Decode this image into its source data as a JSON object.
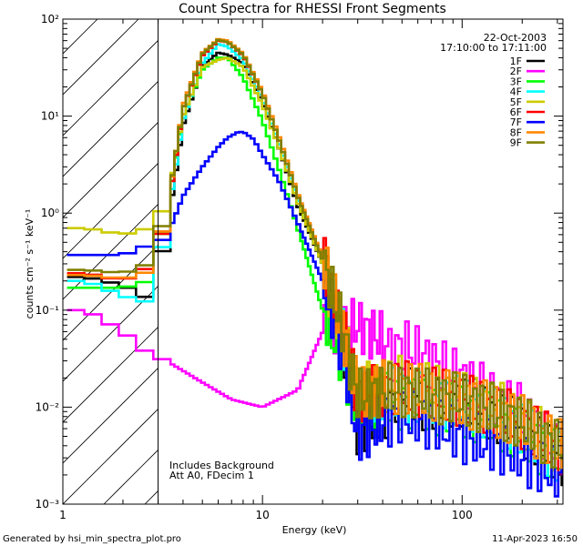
{
  "chart_data": {
    "type": "line",
    "title": "Count Spectra for RHESSI Front Segments",
    "xlabel": "Energy (keV)",
    "ylabel": "counts cm⁻² s⁻¹ keV⁻¹",
    "xscale": "log",
    "yscale": "log",
    "xlim": [
      1,
      320
    ],
    "ylim": [
      0.001,
      100
    ],
    "x_tick_labels": [
      "1",
      "10",
      "100"
    ],
    "y_tick_labels": [
      "10⁻³",
      "10⁻²",
      "10⁻¹",
      "10⁰",
      "10¹",
      "10²"
    ],
    "date_label": "22-Oct-2003",
    "time_range_label": "17:10:00 to 17:11:00",
    "hatched_region_keV": [
      1,
      3
    ],
    "note_lines": [
      "Includes Background",
      "Att A0, FDecim 1"
    ],
    "series": [
      {
        "name": "1F",
        "color": "#000000",
        "x": [
          1.3,
          2,
          2.7,
          3.3,
          4,
          5,
          6,
          6.7,
          8,
          10,
          12,
          15,
          20,
          25,
          30,
          40,
          50,
          70,
          100,
          150,
          200,
          300
        ],
        "y": [
          0.22,
          0.18,
          0.13,
          0.6,
          8,
          33,
          45,
          43,
          35,
          14,
          5,
          1.2,
          0.3,
          0.05,
          0.006,
          0.008,
          0.015,
          0.01,
          0.012,
          0.008,
          0.006,
          0.003
        ]
      },
      {
        "name": "2F",
        "color": "#ff00ff",
        "x": [
          1.3,
          2,
          2.7,
          3.3,
          5,
          7,
          10,
          15,
          20,
          30,
          40,
          45,
          50,
          70,
          100,
          150,
          200,
          300
        ],
        "y": [
          0.1,
          0.06,
          0.035,
          0.03,
          0.018,
          0.012,
          0.01,
          0.015,
          0.06,
          0.07,
          0.05,
          0.035,
          0.045,
          0.03,
          0.02,
          0.012,
          0.009,
          0.0035
        ]
      },
      {
        "name": "3F",
        "color": "#00ff00",
        "x": [
          1.3,
          2,
          2.7,
          3.3,
          4,
          5,
          6,
          6.7,
          8,
          10,
          12,
          15,
          20,
          25,
          30,
          40,
          50,
          70,
          100,
          150,
          200,
          300
        ],
        "y": [
          0.17,
          0.17,
          0.2,
          0.9,
          10,
          30,
          40,
          40,
          25,
          9,
          3,
          0.7,
          0.1,
          0.03,
          0.01,
          0.012,
          0.011,
          0.01,
          0.009,
          0.007,
          0.005,
          0.003
        ]
      },
      {
        "name": "4F",
        "color": "#00ffff",
        "x": [
          1.3,
          2,
          2.7,
          3.3,
          4,
          5,
          6,
          6.7,
          8,
          10,
          12,
          15,
          20,
          25,
          30,
          40,
          50,
          70,
          100,
          150,
          200,
          300
        ],
        "y": [
          0.2,
          0.14,
          0.12,
          0.7,
          9,
          35,
          55,
          52,
          38,
          15,
          5.5,
          1.4,
          0.3,
          0.06,
          0.012,
          0.014,
          0.013,
          0.012,
          0.011,
          0.008,
          0.006,
          0.003
        ]
      },
      {
        "name": "5F",
        "color": "#cccc00",
        "x": [
          1.3,
          2,
          2.7,
          3.3,
          4,
          5,
          6,
          6.7,
          8,
          10,
          12,
          15,
          20,
          25,
          30,
          40,
          50,
          70,
          100,
          150,
          200,
          300
        ],
        "y": [
          0.7,
          0.6,
          0.7,
          1.2,
          10,
          32,
          38,
          40,
          32,
          13,
          5,
          1.3,
          0.3,
          0.06,
          0.015,
          0.016,
          0.018,
          0.015,
          0.012,
          0.01,
          0.007,
          0.004
        ]
      },
      {
        "name": "6F",
        "color": "#ff0000",
        "x": [
          1.3,
          2,
          2.7,
          3.3,
          4,
          5,
          6,
          6.7,
          8,
          10,
          12,
          15,
          20,
          25,
          30,
          40,
          50,
          70,
          100,
          150,
          200,
          300
        ],
        "y": [
          0.24,
          0.2,
          0.28,
          0.8,
          12,
          42,
          60,
          58,
          42,
          17,
          6,
          1.5,
          0.35,
          0.07,
          0.013,
          0.015,
          0.016,
          0.014,
          0.012,
          0.009,
          0.007,
          0.004
        ]
      },
      {
        "name": "7F",
        "color": "#0000ff",
        "x": [
          1.3,
          2,
          2.7,
          3.3,
          4,
          5,
          6,
          6.7,
          7.5,
          8,
          9,
          10,
          12,
          15,
          20,
          25,
          30,
          40,
          50,
          70,
          100,
          150,
          200,
          300
        ],
        "y": [
          0.37,
          0.37,
          0.47,
          0.55,
          1.5,
          3,
          4.8,
          6,
          6.8,
          6.9,
          5.8,
          4,
          2.2,
          0.8,
          0.2,
          0.04,
          0.005,
          0.007,
          0.008,
          0.007,
          0.005,
          0.004,
          0.003,
          0.002
        ]
      },
      {
        "name": "8F",
        "color": "#ff8800",
        "x": [
          1.3,
          2,
          2.7,
          3.3,
          4,
          5,
          6,
          6.7,
          8,
          10,
          12,
          15,
          20,
          25,
          30,
          40,
          50,
          70,
          100,
          150,
          200,
          300
        ],
        "y": [
          0.23,
          0.21,
          0.25,
          0.9,
          13,
          45,
          62,
          60,
          44,
          18,
          6.5,
          1.6,
          0.35,
          0.07,
          0.014,
          0.016,
          0.016,
          0.014,
          0.012,
          0.009,
          0.007,
          0.004
        ]
      },
      {
        "name": "9F",
        "color": "#808000",
        "x": [
          1.3,
          2,
          2.7,
          3.3,
          4,
          5,
          6,
          6.7,
          8,
          10,
          12,
          15,
          20,
          25,
          30,
          40,
          50,
          70,
          100,
          150,
          200,
          300
        ],
        "y": [
          0.26,
          0.24,
          0.3,
          1.0,
          12,
          44,
          61,
          58,
          43,
          17,
          6,
          1.5,
          0.33,
          0.07,
          0.013,
          0.015,
          0.015,
          0.013,
          0.012,
          0.009,
          0.007,
          0.004
        ]
      }
    ]
  },
  "footer": {
    "left": "Generated by hsi_min_spectra_plot.pro",
    "right": "11-Apr-2023 16:50"
  }
}
